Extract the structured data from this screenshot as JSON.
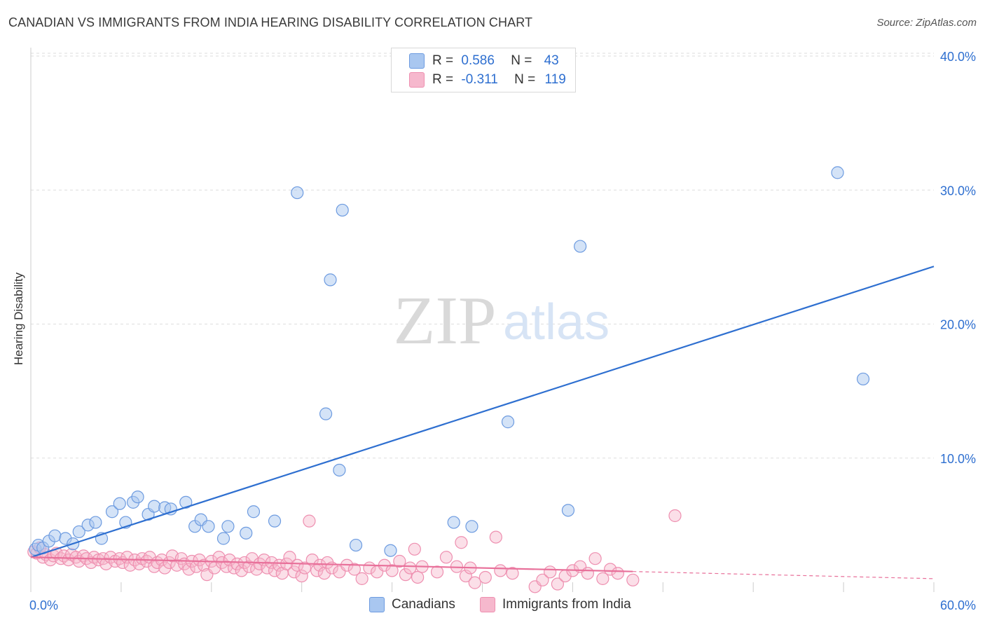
{
  "header": {
    "title": "CANADIAN VS IMMIGRANTS FROM INDIA HEARING DISABILITY CORRELATION CHART",
    "source": "Source: ZipAtlas.com"
  },
  "legend": {
    "rows": [
      {
        "r_label": "R =",
        "r_value": "0.586",
        "n_label": "N =",
        "n_value": "43",
        "color": "#a9c7f0"
      },
      {
        "r_label": "R =",
        "r_value": "-0.311",
        "n_label": "N =",
        "n_value": "119",
        "color": "#f6b8cd"
      }
    ]
  },
  "bottom_legend": {
    "canadians": "Canadians",
    "india": "Immigrants from India"
  },
  "watermark": {
    "zip": "ZIP",
    "atlas": "atlas"
  },
  "colors": {
    "blue_fill": "#a9c7f0",
    "blue_stroke": "#6d9be0",
    "blue_line": "#2e6fd0",
    "pink_fill": "#f6b8cd",
    "pink_stroke": "#ee8fb0",
    "pink_line": "#e8709a",
    "grid": "#dddddd",
    "tick_label": "#2e6fd0"
  },
  "chart_data": {
    "type": "scatter",
    "title": "CANADIAN VS IMMIGRANTS FROM INDIA HEARING DISABILITY CORRELATION CHART",
    "xlabel": "",
    "ylabel": "Hearing Disability",
    "xlim": [
      0,
      60
    ],
    "ylim": [
      0,
      40
    ],
    "x_tick_labels": [
      "0.0%",
      "60.0%"
    ],
    "y_ticks": [
      10,
      20,
      30,
      40
    ],
    "y_tick_labels": [
      "10.0%",
      "20.0%",
      "30.0%",
      "40.0%"
    ],
    "grid": true,
    "legend_position": "top-center",
    "series": [
      {
        "name": "Canadians",
        "r": 0.586,
        "n": 43,
        "trend": {
          "x": [
            0,
            60
          ],
          "y": [
            2.6,
            24.3
          ],
          "dashed_from": null
        },
        "points": [
          [
            0.3,
            3.2
          ],
          [
            0.5,
            3.5
          ],
          [
            0.8,
            3.3
          ],
          [
            1.2,
            3.8
          ],
          [
            1.6,
            4.2
          ],
          [
            2.3,
            4.0
          ],
          [
            2.8,
            3.6
          ],
          [
            3.2,
            4.5
          ],
          [
            3.8,
            5.0
          ],
          [
            4.3,
            5.2
          ],
          [
            4.7,
            4.0
          ],
          [
            5.4,
            6.0
          ],
          [
            5.9,
            6.6
          ],
          [
            6.3,
            5.2
          ],
          [
            6.8,
            6.7
          ],
          [
            7.1,
            7.1
          ],
          [
            7.8,
            5.8
          ],
          [
            8.2,
            6.4
          ],
          [
            8.9,
            6.3
          ],
          [
            9.3,
            6.2
          ],
          [
            10.3,
            6.7
          ],
          [
            10.9,
            4.9
          ],
          [
            11.3,
            5.4
          ],
          [
            11.8,
            4.9
          ],
          [
            12.8,
            4.0
          ],
          [
            13.1,
            4.9
          ],
          [
            14.3,
            4.4
          ],
          [
            14.8,
            6.0
          ],
          [
            16.2,
            5.3
          ],
          [
            17.7,
            29.8
          ],
          [
            19.6,
            13.3
          ],
          [
            19.9,
            23.3
          ],
          [
            20.5,
            9.1
          ],
          [
            20.7,
            28.5
          ],
          [
            21.6,
            3.5
          ],
          [
            23.9,
            3.1
          ],
          [
            28.1,
            5.2
          ],
          [
            29.3,
            4.9
          ],
          [
            31.7,
            12.7
          ],
          [
            35.7,
            6.1
          ],
          [
            36.5,
            25.8
          ],
          [
            53.6,
            31.3
          ],
          [
            55.3,
            15.9
          ]
        ]
      },
      {
        "name": "Immigrants from India",
        "r": -0.311,
        "n": 119,
        "trend": {
          "x": [
            0,
            60
          ],
          "y": [
            2.6,
            1.0
          ],
          "solid_until": 40
        },
        "points": [
          [
            0.2,
            3.0
          ],
          [
            0.4,
            2.9
          ],
          [
            0.6,
            3.3
          ],
          [
            0.8,
            2.6
          ],
          [
            1.0,
            2.8
          ],
          [
            1.3,
            2.4
          ],
          [
            1.5,
            2.7
          ],
          [
            1.7,
            2.9
          ],
          [
            2.0,
            2.5
          ],
          [
            2.2,
            2.7
          ],
          [
            2.5,
            2.4
          ],
          [
            2.7,
            2.8
          ],
          [
            3.0,
            2.6
          ],
          [
            3.2,
            2.3
          ],
          [
            3.5,
            2.7
          ],
          [
            3.7,
            2.5
          ],
          [
            4.0,
            2.2
          ],
          [
            4.2,
            2.6
          ],
          [
            4.5,
            2.4
          ],
          [
            4.8,
            2.5
          ],
          [
            5.0,
            2.1
          ],
          [
            5.3,
            2.6
          ],
          [
            5.6,
            2.3
          ],
          [
            5.9,
            2.5
          ],
          [
            6.1,
            2.2
          ],
          [
            6.4,
            2.6
          ],
          [
            6.6,
            2.0
          ],
          [
            6.9,
            2.4
          ],
          [
            7.2,
            2.1
          ],
          [
            7.4,
            2.5
          ],
          [
            7.7,
            2.3
          ],
          [
            7.9,
            2.6
          ],
          [
            8.2,
            1.9
          ],
          [
            8.4,
            2.2
          ],
          [
            8.7,
            2.4
          ],
          [
            8.9,
            1.8
          ],
          [
            9.2,
            2.2
          ],
          [
            9.4,
            2.7
          ],
          [
            9.7,
            2.0
          ],
          [
            10.0,
            2.5
          ],
          [
            10.2,
            2.1
          ],
          [
            10.5,
            1.7
          ],
          [
            10.7,
            2.3
          ],
          [
            11.0,
            1.9
          ],
          [
            11.2,
            2.4
          ],
          [
            11.5,
            2.0
          ],
          [
            11.7,
            1.3
          ],
          [
            12.0,
            2.3
          ],
          [
            12.2,
            1.8
          ],
          [
            12.5,
            2.6
          ],
          [
            12.7,
            2.2
          ],
          [
            13.0,
            1.9
          ],
          [
            13.2,
            2.4
          ],
          [
            13.5,
            1.8
          ],
          [
            13.7,
            2.1
          ],
          [
            14.0,
            1.6
          ],
          [
            14.2,
            2.2
          ],
          [
            14.5,
            1.9
          ],
          [
            14.7,
            2.5
          ],
          [
            15.0,
            1.7
          ],
          [
            15.2,
            2.1
          ],
          [
            15.5,
            2.4
          ],
          [
            15.7,
            1.8
          ],
          [
            16.0,
            2.2
          ],
          [
            16.2,
            1.6
          ],
          [
            16.5,
            2.0
          ],
          [
            16.7,
            1.4
          ],
          [
            17.0,
            2.1
          ],
          [
            17.2,
            2.6
          ],
          [
            17.5,
            1.5
          ],
          [
            17.7,
            2.0
          ],
          [
            18.0,
            1.2
          ],
          [
            18.2,
            1.8
          ],
          [
            18.5,
            5.3
          ],
          [
            18.7,
            2.4
          ],
          [
            19.0,
            1.6
          ],
          [
            19.2,
            2.0
          ],
          [
            19.5,
            1.4
          ],
          [
            19.7,
            2.2
          ],
          [
            20.0,
            1.8
          ],
          [
            20.5,
            1.5
          ],
          [
            21.0,
            2.0
          ],
          [
            21.5,
            1.7
          ],
          [
            22.0,
            1.0
          ],
          [
            22.5,
            1.8
          ],
          [
            23.0,
            1.5
          ],
          [
            23.5,
            2.0
          ],
          [
            24.0,
            1.6
          ],
          [
            24.5,
            2.3
          ],
          [
            24.9,
            1.3
          ],
          [
            25.2,
            1.8
          ],
          [
            25.5,
            3.2
          ],
          [
            25.7,
            1.1
          ],
          [
            26.0,
            1.9
          ],
          [
            27.0,
            1.5
          ],
          [
            27.6,
            2.6
          ],
          [
            28.3,
            1.9
          ],
          [
            28.6,
            3.7
          ],
          [
            28.9,
            1.2
          ],
          [
            29.2,
            1.8
          ],
          [
            29.5,
            0.7
          ],
          [
            30.2,
            1.1
          ],
          [
            30.9,
            4.1
          ],
          [
            31.2,
            1.6
          ],
          [
            32.0,
            1.4
          ],
          [
            33.5,
            0.4
          ],
          [
            34.0,
            0.9
          ],
          [
            34.5,
            1.5
          ],
          [
            35.0,
            0.6
          ],
          [
            35.5,
            1.2
          ],
          [
            36.0,
            1.6
          ],
          [
            36.5,
            1.9
          ],
          [
            37.0,
            1.4
          ],
          [
            37.5,
            2.5
          ],
          [
            38.0,
            1.0
          ],
          [
            38.5,
            1.7
          ],
          [
            39.0,
            1.4
          ],
          [
            40.0,
            0.9
          ],
          [
            42.8,
            5.7
          ]
        ]
      }
    ]
  }
}
